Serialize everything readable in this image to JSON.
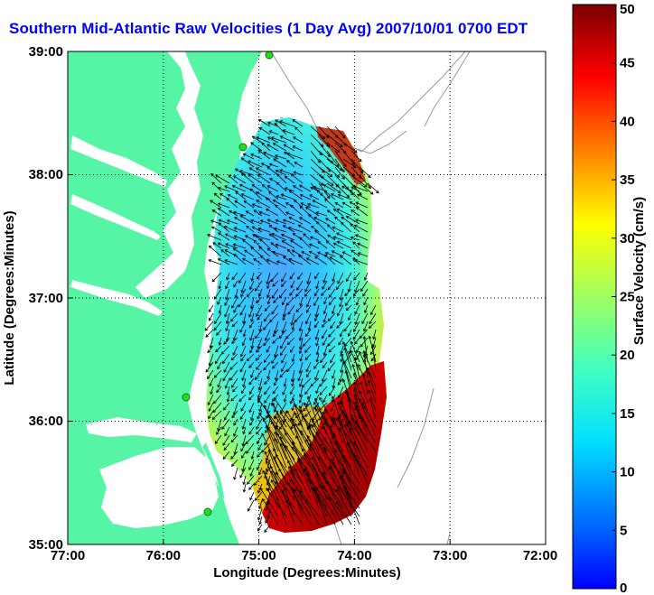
{
  "title": "Southern Mid-Atlantic Raw Velocities (1 Day Avg) 2007/10/01 0700 EDT",
  "map": {
    "xlabel": "Longitude (Degrees:Minutes)",
    "ylabel": "Latitude (Degrees:Minutes)",
    "lon_ticks": [
      "77:00",
      "76:00",
      "75:00",
      "74:00",
      "73:00",
      "72:00"
    ],
    "lat_ticks": [
      "39:00",
      "38:00",
      "37:00",
      "36:00",
      "35:00"
    ],
    "lon_range": [
      -77,
      -72
    ],
    "lat_range": [
      35,
      39
    ],
    "land_color": "#55f5a5",
    "grid": "dotted"
  },
  "colorbar": {
    "label": "Surface Velocity (cm/s)",
    "ticks": [
      "0",
      "5",
      "10",
      "15",
      "20",
      "25",
      "30",
      "35",
      "40",
      "45",
      "50"
    ],
    "range": [
      0,
      50
    ],
    "colormap": "jet"
  }
}
